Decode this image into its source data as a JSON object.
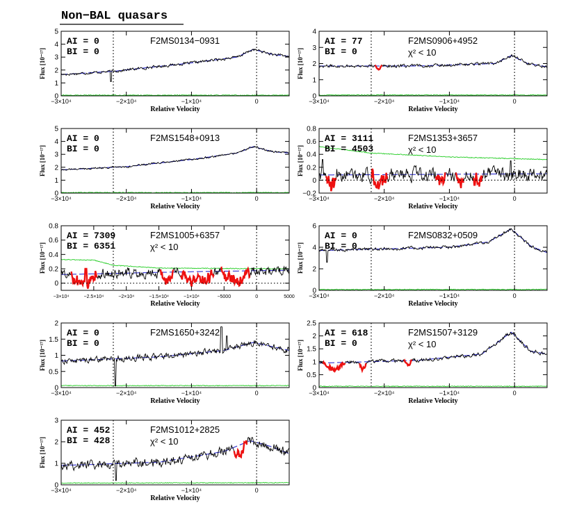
{
  "figure": {
    "title": "Non−BAL quasars",
    "xlabel": "Relative Velocity",
    "ylabel": "Flux [10⁻¹⁷]"
  },
  "colors": {
    "spectrum": "#000000",
    "continuum_fit": "#1a1acc",
    "error": "#22cc22",
    "absorption": "#ee1111"
  },
  "chart_data": [
    {
      "type": "line",
      "id": "F2MS0134-0931",
      "name": "F2MS0134−0931",
      "ai": "AI  =  0",
      "bi": "BI  =  0",
      "chi": "",
      "xlim": [
        -30000,
        5000
      ],
      "ylim": [
        0,
        5
      ],
      "yticks": [
        0,
        1,
        2,
        3,
        4,
        5
      ],
      "xticks": [
        {
          "v": -30000,
          "t": "−3×10⁴"
        },
        {
          "v": -20000,
          "t": "−2×10⁴"
        },
        {
          "v": -10000,
          "t": "−1×10⁴"
        },
        {
          "v": 0,
          "t": "0"
        }
      ],
      "vlines": [
        -22000,
        0
      ],
      "hline": null,
      "continuum": [
        [
          -30000,
          1.65
        ],
        [
          -22000,
          1.9
        ],
        [
          -10000,
          2.55
        ],
        [
          -3000,
          3.0
        ],
        [
          -500,
          3.6
        ],
        [
          2500,
          3.2
        ],
        [
          5000,
          3.05
        ]
      ],
      "flux_noise": 0.09,
      "flux_spikes": [
        [
          -22400,
          1.1
        ]
      ],
      "error_level": [
        [
          -30000,
          0.05
        ],
        [
          5000,
          0.05
        ]
      ],
      "absorption": []
    },
    {
      "type": "line",
      "id": "F2MS0906+4952",
      "name": "F2MS0906+4952",
      "ai": "AI  =  77",
      "bi": "BI  =  0",
      "chi": "χ²  <  10",
      "xlim": [
        -30000,
        5000
      ],
      "ylim": [
        0,
        4
      ],
      "yticks": [
        0,
        1,
        2,
        3,
        4
      ],
      "xticks": [
        {
          "v": -30000,
          "t": "−3×10⁴"
        },
        {
          "v": -20000,
          "t": "−2×10⁴"
        },
        {
          "v": -10000,
          "t": "−1×10⁴"
        },
        {
          "v": 0,
          "t": "0"
        }
      ],
      "vlines": [
        -22000,
        0
      ],
      "hline": null,
      "continuum": [
        [
          -30000,
          1.85
        ],
        [
          -15000,
          1.85
        ],
        [
          -3000,
          2.0
        ],
        [
          -500,
          2.5
        ],
        [
          2000,
          2.0
        ],
        [
          5000,
          1.8
        ]
      ],
      "flux_noise": 0.08,
      "flux_spikes": [],
      "error_level": [
        [
          -30000,
          0.05
        ],
        [
          5000,
          0.05
        ]
      ],
      "absorption": [
        [
          -21500,
          -20300,
          0.2
        ]
      ]
    },
    {
      "type": "line",
      "id": "F2MS1548+0913",
      "name": "F2MS1548+0913",
      "ai": "AI  =  0",
      "bi": "BI  =  0",
      "chi": "",
      "xlim": [
        -30000,
        5000
      ],
      "ylim": [
        0,
        5
      ],
      "yticks": [
        0,
        1,
        2,
        3,
        4,
        5
      ],
      "xticks": [
        {
          "v": -30000,
          "t": "−3×10⁴"
        },
        {
          "v": -20000,
          "t": "−2×10⁴"
        },
        {
          "v": -10000,
          "t": "−1×10⁴"
        },
        {
          "v": 0,
          "t": "0"
        }
      ],
      "vlines": [
        -22000,
        0
      ],
      "hline": null,
      "continuum": [
        [
          -30000,
          1.8
        ],
        [
          -20000,
          2.05
        ],
        [
          -10000,
          2.6
        ],
        [
          -3000,
          3.1
        ],
        [
          -500,
          3.6
        ],
        [
          2500,
          3.2
        ],
        [
          5000,
          3.1
        ]
      ],
      "flux_noise": 0.06,
      "flux_spikes": [],
      "error_level": [
        [
          -30000,
          0.04
        ],
        [
          5000,
          0.04
        ]
      ],
      "absorption": []
    },
    {
      "type": "line",
      "id": "F2MS1353+3657",
      "name": "F2MS1353+3657",
      "ai": "AI  =  3111",
      "bi": "BI  =  4503",
      "chi": "χ²  <  10",
      "xlim": [
        -30000,
        5000
      ],
      "ylim": [
        -0.2,
        0.8
      ],
      "yticks": [
        -0.2,
        0,
        0.2,
        0.4,
        0.6,
        0.8
      ],
      "xticks": [
        {
          "v": -30000,
          "t": "−3×10⁴"
        },
        {
          "v": -20000,
          "t": "−2×10⁴"
        },
        {
          "v": -10000,
          "t": "−1×10⁴"
        },
        {
          "v": 0,
          "t": "0"
        }
      ],
      "vlines": [
        -22000,
        0
      ],
      "hline": 0,
      "continuum": [
        [
          -30000,
          0.08
        ],
        [
          5000,
          0.1
        ]
      ],
      "flux_noise": 0.09,
      "flux_spikes": [
        [
          -29500,
          0.32
        ],
        [
          -600,
          0.3
        ]
      ],
      "error_level": [
        [
          -30000,
          0.52
        ],
        [
          -22000,
          0.42
        ],
        [
          -10000,
          0.36
        ],
        [
          5000,
          0.32
        ]
      ],
      "absorption": [
        [
          -29000,
          -27300,
          0.15
        ],
        [
          -22000,
          -19500,
          0.15
        ],
        [
          -12200,
          -10600,
          0.1
        ],
        [
          -9000,
          -7800,
          0.1
        ],
        [
          -6300,
          -5000,
          0.1
        ]
      ]
    },
    {
      "type": "line",
      "id": "F2MS1005+6357",
      "name": "F2MS1005+6357",
      "ai": "AI  =  7309",
      "bi": "BI  =  6351",
      "chi": "χ²  <  10",
      "xlim": [
        -30000,
        5000
      ],
      "ylim": [
        -0.1,
        0.8
      ],
      "yticks": [
        0,
        0.2,
        0.4,
        0.6,
        0.8
      ],
      "xticks": [
        {
          "v": -30000,
          "t": "−3×10⁴"
        },
        {
          "v": -25000,
          "t": "−2.5×10⁴"
        },
        {
          "v": -20000,
          "t": "−2×10⁴"
        },
        {
          "v": -15000,
          "t": "−1.5×10⁴"
        },
        {
          "v": -10000,
          "t": "−1×10⁴"
        },
        {
          "v": -5000,
          "t": "−5000"
        },
        {
          "v": 0,
          "t": "0"
        },
        {
          "v": 5000,
          "t": "5000"
        }
      ],
      "vlines": [
        -22000,
        0
      ],
      "hline": 0,
      "continuum": [
        [
          -30000,
          0.12
        ],
        [
          -10000,
          0.16
        ],
        [
          5000,
          0.18
        ]
      ],
      "flux_noise": 0.06,
      "flux_spikes": [
        [
          -26200,
          0.2
        ],
        [
          900,
          0.18
        ]
      ],
      "error_level": [
        [
          -30000,
          0.33
        ],
        [
          -25000,
          0.32
        ],
        [
          -22000,
          0.25
        ],
        [
          -15000,
          0.21
        ],
        [
          5000,
          0.2
        ]
      ],
      "absorption": [
        [
          -28500,
          -24500,
          0.12
        ],
        [
          -14800,
          -12700,
          0.1
        ],
        [
          -11700,
          -6500,
          0.13
        ],
        [
          -5500,
          -1000,
          0.13
        ]
      ]
    },
    {
      "type": "line",
      "id": "F2MS0832+0509",
      "name": "F2MS0832+0509",
      "ai": "AI  =  0",
      "bi": "BI  =  0",
      "chi": "",
      "xlim": [
        -30000,
        5000
      ],
      "ylim": [
        0,
        6
      ],
      "yticks": [
        0,
        2,
        4,
        6
      ],
      "xticks": [
        {
          "v": -30000,
          "t": "−3×10⁴"
        },
        {
          "v": -20000,
          "t": "−2×10⁴"
        },
        {
          "v": -10000,
          "t": "−1×10⁴"
        },
        {
          "v": 0,
          "t": "0"
        }
      ],
      "vlines": [
        -22000,
        0
      ],
      "hline": null,
      "continuum": [
        [
          -30000,
          3.7
        ],
        [
          -20000,
          3.85
        ],
        [
          -10000,
          4.0
        ],
        [
          -4000,
          4.5
        ],
        [
          -500,
          5.7
        ],
        [
          2500,
          4.1
        ],
        [
          5000,
          3.5
        ]
      ],
      "flux_noise": 0.12,
      "flux_spikes": [
        [
          -28800,
          2.6
        ]
      ],
      "error_level": [
        [
          -30000,
          0.08
        ],
        [
          5000,
          0.08
        ]
      ],
      "absorption": []
    },
    {
      "type": "line",
      "id": "F2MS1650+3242",
      "name": "F2MS1650+3242",
      "ai": "AI  =  0",
      "bi": "BI  =  0",
      "chi": "",
      "xlim": [
        -30000,
        5000
      ],
      "ylim": [
        0,
        2
      ],
      "yticks": [
        0,
        0.5,
        1,
        1.5,
        2
      ],
      "xticks": [
        {
          "v": -30000,
          "t": "−3×10⁴"
        },
        {
          "v": -20000,
          "t": "−2×10⁴"
        },
        {
          "v": -10000,
          "t": "−1×10⁴"
        },
        {
          "v": 0,
          "t": "0"
        }
      ],
      "vlines": [
        -22000,
        0
      ],
      "hline": null,
      "continuum": [
        [
          -30000,
          0.82
        ],
        [
          -15000,
          0.95
        ],
        [
          -5000,
          1.15
        ],
        [
          -500,
          1.4
        ],
        [
          5000,
          1.15
        ]
      ],
      "flux_noise": 0.08,
      "flux_spikes": [
        [
          -21700,
          0.05
        ],
        [
          -5400,
          1.88
        ],
        [
          -4600,
          1.6
        ]
      ],
      "error_level": [
        [
          -30000,
          0.06
        ],
        [
          5000,
          0.06
        ]
      ],
      "absorption": []
    },
    {
      "type": "line",
      "id": "F2MS1507+3129",
      "name": "F2MS1507+3129",
      "ai": "AI  =  618",
      "bi": "BI  =  0",
      "chi": "χ²  <  10",
      "xlim": [
        -30000,
        5000
      ],
      "ylim": [
        0,
        2.5
      ],
      "yticks": [
        0,
        0.5,
        1,
        1.5,
        2,
        2.5
      ],
      "xticks": [
        {
          "v": -30000,
          "t": "−3×10⁴"
        },
        {
          "v": -20000,
          "t": "−2×10⁴"
        },
        {
          "v": -10000,
          "t": "−1×10⁴"
        },
        {
          "v": 0,
          "t": "0"
        }
      ],
      "vlines": [
        -22000,
        0
      ],
      "hline": null,
      "continuum": [
        [
          -30000,
          0.95
        ],
        [
          -15000,
          1.05
        ],
        [
          -5000,
          1.3
        ],
        [
          -500,
          2.15
        ],
        [
          2500,
          1.4
        ],
        [
          5000,
          1.3
        ]
      ],
      "flux_noise": 0.06,
      "flux_spikes": [],
      "error_level": [
        [
          -30000,
          0.05
        ],
        [
          5000,
          0.05
        ]
      ],
      "absorption": [
        [
          -29500,
          -26000,
          0.25
        ],
        [
          -23800,
          -22800,
          0.3
        ],
        [
          -17000,
          -15800,
          0.2
        ]
      ]
    },
    {
      "type": "line",
      "id": "F2MS1012+2825",
      "name": "F2MS1012+2825",
      "ai": "AI  =  452",
      "bi": "BI  =  428",
      "chi": "χ²  <  10",
      "xlim": [
        -30000,
        5000
      ],
      "ylim": [
        0,
        3
      ],
      "yticks": [
        0,
        1,
        2,
        3
      ],
      "xticks": [
        {
          "v": -30000,
          "t": "−3×10⁴"
        },
        {
          "v": -20000,
          "t": "−2×10⁴"
        },
        {
          "v": -10000,
          "t": "−1×10⁴"
        },
        {
          "v": 0,
          "t": "0"
        }
      ],
      "vlines": [
        -22000,
        0
      ],
      "hline": null,
      "continuum": [
        [
          -30000,
          0.9
        ],
        [
          -15000,
          1.05
        ],
        [
          -5000,
          1.55
        ],
        [
          -1000,
          2.05
        ],
        [
          2000,
          1.8
        ],
        [
          5000,
          1.45
        ]
      ],
      "flux_noise": 0.18,
      "flux_spikes": [
        [
          -21600,
          0.2
        ],
        [
          -700,
          2.2
        ]
      ],
      "error_level": [
        [
          -30000,
          0.08
        ],
        [
          5000,
          0.1
        ]
      ],
      "absorption": [
        [
          -3500,
          -1500,
          0.45
        ]
      ]
    }
  ]
}
